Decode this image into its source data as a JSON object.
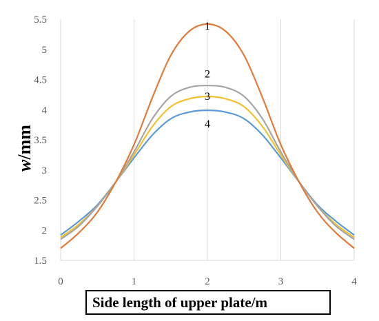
{
  "chart_data": {
    "type": "line",
    "xlabel": "Side length of upper plate/m",
    "ylabel": "w/mm",
    "ylabel_parts": {
      "var": "w",
      "unit": "/mm"
    },
    "xlim": [
      0,
      4
    ],
    "ylim": [
      1.5,
      5.5
    ],
    "x_ticks": [
      "0",
      "1",
      "2",
      "3",
      "4"
    ],
    "y_ticks": [
      "1.5",
      "2",
      "2.5",
      "3",
      "3.5",
      "4",
      "4.5",
      "5",
      "5.5"
    ],
    "grid": "vertical",
    "x": [
      0,
      0.25,
      0.5,
      0.75,
      1,
      1.25,
      1.5,
      1.75,
      2,
      2.25,
      2.5,
      2.75,
      3,
      3.25,
      3.5,
      3.75,
      4
    ],
    "series": [
      {
        "label": "1",
        "color": "#E07B39",
        "values": [
          1.7,
          1.96,
          2.3,
          2.8,
          3.42,
          4.2,
          4.9,
          5.3,
          5.42,
          5.3,
          4.9,
          4.2,
          3.42,
          2.8,
          2.3,
          1.96,
          1.7
        ]
      },
      {
        "label": "2",
        "color": "#A5A5A5",
        "values": [
          1.85,
          2.07,
          2.4,
          2.8,
          3.3,
          3.85,
          4.22,
          4.37,
          4.4,
          4.37,
          4.22,
          3.85,
          3.3,
          2.8,
          2.4,
          2.07,
          1.85
        ]
      },
      {
        "label": "3",
        "color": "#F2C12E",
        "values": [
          1.88,
          2.1,
          2.4,
          2.8,
          3.25,
          3.72,
          4.05,
          4.18,
          4.22,
          4.18,
          4.05,
          3.72,
          3.25,
          2.8,
          2.4,
          2.1,
          1.88
        ]
      },
      {
        "label": "4",
        "color": "#5B9BD5",
        "values": [
          1.92,
          2.15,
          2.42,
          2.8,
          3.2,
          3.58,
          3.85,
          3.96,
          3.99,
          3.96,
          3.85,
          3.58,
          3.2,
          2.8,
          2.42,
          2.15,
          1.92
        ]
      }
    ]
  }
}
